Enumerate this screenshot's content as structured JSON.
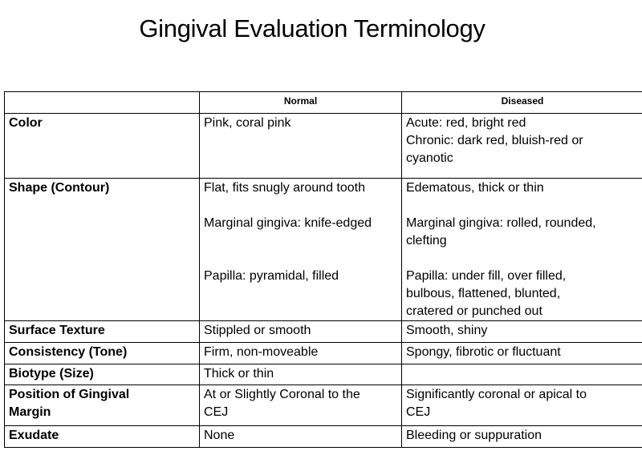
{
  "title": "Gingival Evaluation Terminology",
  "table": {
    "headers": [
      "",
      "Normal",
      "Diseased"
    ],
    "rows": [
      {
        "label": "Color",
        "normal": [
          "Pink,  coral pink"
        ],
        "diseased": [
          "Acute: red, bright red",
          "Chronic: dark red, bluish-red or",
          "cyanotic"
        ]
      },
      {
        "label": "Shape (Contour)",
        "normal": [
          "Flat, fits snugly around tooth",
          "Marginal gingiva: knife-edged",
          "Papilla: pyramidal,  filled"
        ],
        "diseased": [
          "Edematous,  thick or thin",
          "Marginal gingiva: rolled, rounded,",
          "clefting",
          "Papilla: under fill, over filled,",
          "bulbous,  flattened,  blunted,",
          "cratered or punched  out"
        ]
      },
      {
        "label": "Surface Texture",
        "normal": [
          "Stippled  or smooth"
        ],
        "diseased": [
          "Smooth,  shiny"
        ]
      },
      {
        "label": "Consistency (Tone)",
        "normal": [
          "Firm, non-moveable"
        ],
        "diseased": [
          "Spongy,  fibrotic or fluctuant"
        ]
      },
      {
        "label": "Biotype  (Size)",
        "normal": [
          "Thick or thin"
        ],
        "diseased": [
          ""
        ]
      },
      {
        "label_lines": [
          "Position  of Gingival",
          "Margin"
        ],
        "normal": [
          "At or Slightly  Coronal to the",
          "CEJ"
        ],
        "diseased": [
          "Significantly  coronal or apical to",
          "CEJ"
        ]
      },
      {
        "label": "Exudate",
        "normal": [
          "None"
        ],
        "diseased": [
          "Bleeding  or suppuration"
        ]
      }
    ]
  }
}
